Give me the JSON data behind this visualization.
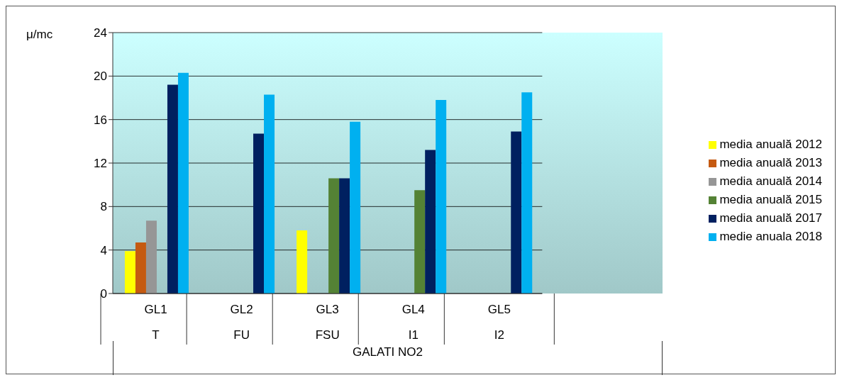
{
  "chart_data": {
    "type": "bar",
    "ylabel": "μ/mc",
    "xlabel": "GALATI NO2",
    "categories": [
      "GL1\nT",
      "GL2\nFU",
      "GL3\nFSU",
      "GL4\nI1",
      "GL5\nI2"
    ],
    "series": [
      {
        "name": "media anuală 2012",
        "color": "#ffff00",
        "values": [
          3.9,
          null,
          5.8,
          null,
          null
        ]
      },
      {
        "name": "media anuală 2013",
        "color": "#c55a11",
        "values": [
          4.7,
          null,
          null,
          null,
          null
        ]
      },
      {
        "name": "media anuală 2014",
        "color": "#969696",
        "values": [
          6.7,
          null,
          null,
          null,
          null
        ]
      },
      {
        "name": "media anuală 2015",
        "color": "#548235",
        "values": [
          null,
          null,
          10.6,
          9.5,
          null
        ]
      },
      {
        "name": "media anuală 2017",
        "color": "#002060",
        "values": [
          19.2,
          14.7,
          10.6,
          13.2,
          14.9
        ]
      },
      {
        "name": "medie anuala 2018",
        "color": "#00b0f0",
        "values": [
          20.3,
          18.3,
          15.8,
          17.8,
          18.5
        ]
      }
    ],
    "ylim": [
      0,
      24
    ],
    "yticks": [
      0,
      4,
      8,
      12,
      16,
      20,
      24
    ],
    "grid": "y",
    "legend": "right"
  }
}
